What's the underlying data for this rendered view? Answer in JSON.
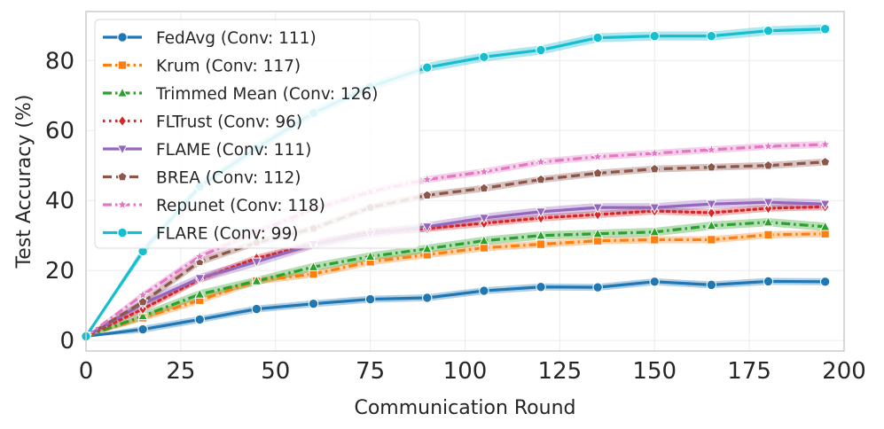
{
  "chart_data": {
    "type": "line",
    "xlabel": "Communication Round",
    "ylabel": "Test Accuracy (%)",
    "xlim": [
      0,
      200
    ],
    "ylim": [
      -3,
      94
    ],
    "x_ticks": [
      0,
      25,
      50,
      75,
      100,
      125,
      150,
      175,
      200
    ],
    "y_ticks": [
      0,
      20,
      40,
      60,
      80
    ],
    "grid": true,
    "legend_position": "top-left",
    "x": [
      0,
      15,
      30,
      45,
      60,
      75,
      90,
      105,
      120,
      135,
      150,
      165,
      180,
      195
    ],
    "series": [
      {
        "name": "FedAvg",
        "label": "FedAvg (Conv: 111)",
        "color": "#1f77b4",
        "dash": "solid",
        "marker": "circle",
        "band": 1.0,
        "values": [
          1.2,
          3.2,
          6,
          9,
          10.5,
          11.8,
          12.2,
          14.2,
          15.3,
          15.2,
          16.8,
          15.9,
          16.9,
          16.8
        ]
      },
      {
        "name": "Krum",
        "label": "Krum (Conv: 117)",
        "color": "#ff7f0e",
        "dash": "dashdot",
        "marker": "square",
        "band": 1.0,
        "values": [
          1.2,
          6.5,
          11.5,
          17,
          19,
          22.5,
          24.5,
          26.5,
          27.5,
          28.5,
          28.8,
          28.8,
          30.2,
          30.5
        ]
      },
      {
        "name": "Trimmed Mean",
        "label": "Trimmed Mean (Conv: 126)",
        "color": "#2ca02c",
        "dash": "dashdot",
        "marker": "triangle-up",
        "band": 1.2,
        "values": [
          1.2,
          7,
          13.2,
          17,
          21,
          24,
          26.2,
          28.5,
          30,
          30.5,
          31,
          32.8,
          33.8,
          32.5
        ]
      },
      {
        "name": "FLTrust",
        "label": "FLTrust (Conv: 96)",
        "color": "#d62728",
        "dash": "dotted",
        "marker": "diamond",
        "band": 1.0,
        "values": [
          1.2,
          9,
          17.5,
          23.5,
          27.5,
          31,
          32,
          33.5,
          35,
          36,
          37,
          36.5,
          37.8,
          38.2
        ]
      },
      {
        "name": "FLAME",
        "label": "FLAME (Conv: 111)",
        "color": "#9467bd",
        "dash": "solid",
        "marker": "triangle-down",
        "band": 1.3,
        "values": [
          1.2,
          10.5,
          17.8,
          22.5,
          27.5,
          30.5,
          32.5,
          35,
          36.8,
          38,
          38,
          39,
          39.5,
          39
        ]
      },
      {
        "name": "BREA",
        "label": "BREA (Conv: 112)",
        "color": "#8c564b",
        "dash": "dashed",
        "marker": "pentagon",
        "band": 1.0,
        "values": [
          1.2,
          11,
          22.5,
          28,
          32,
          38,
          41.5,
          43.5,
          46,
          47.8,
          49,
          49.5,
          50,
          51
        ]
      },
      {
        "name": "Repunet",
        "label": "Repunet (Conv: 118)",
        "color": "#e377c2",
        "dash": "dashdot",
        "marker": "star",
        "band": 1.0,
        "values": [
          1.2,
          13,
          24,
          31,
          37.5,
          42.5,
          46,
          48.2,
          51,
          52.5,
          53.5,
          54.5,
          55.5,
          56
        ]
      },
      {
        "name": "FLARE",
        "label": "FLARE (Conv: 99)",
        "color": "#17becf",
        "dash": "solid",
        "marker": "circle",
        "band": 1.3,
        "values": [
          1.2,
          25.5,
          44,
          55,
          65,
          72.5,
          78,
          81,
          83,
          86.5,
          87,
          87,
          88.5,
          89
        ]
      }
    ]
  }
}
